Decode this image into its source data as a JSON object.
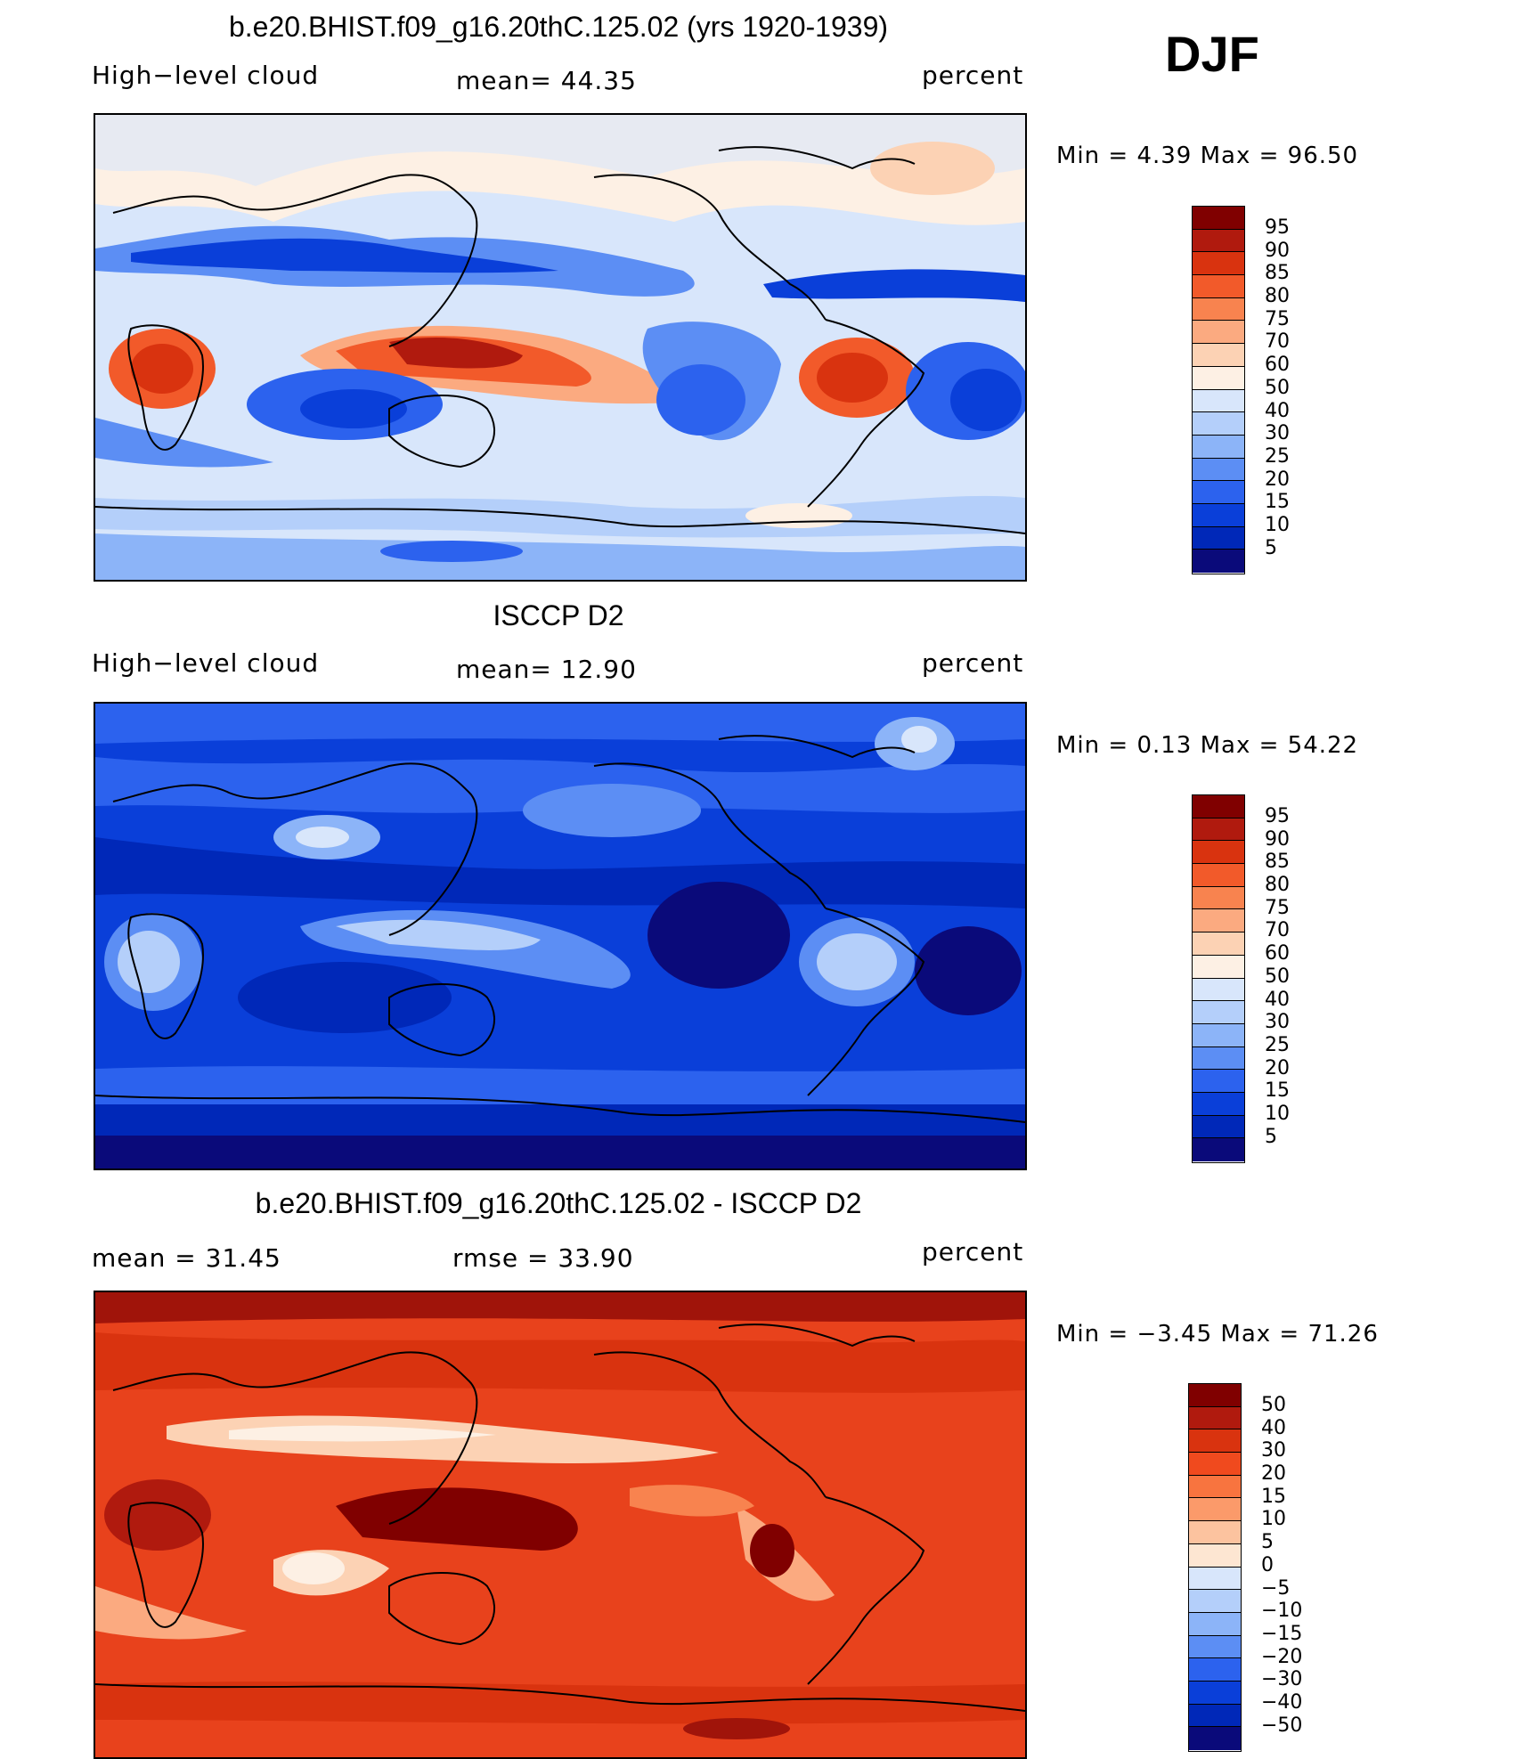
{
  "season": "DJF",
  "colors": {
    "positive_scale": [
      "#08006e",
      "#0028b8",
      "#0a3fd9",
      "#1e5af0",
      "#3c78f5",
      "#6496f7",
      "#8cb4f8",
      "#b4cffa",
      "#d8e6fb",
      "#fde8d6",
      "#fccaa8",
      "#fca67c",
      "#fb8455",
      "#f46432",
      "#e8421c",
      "#cd2810",
      "#a0140a",
      "#800000"
    ]
  },
  "panels": [
    {
      "id": "model",
      "title": "b.e20.BHIST.f09_g16.20thC.125.02 (yrs 1920-1939)",
      "left_label": "High−level cloud",
      "center_label": "mean=   44.35",
      "units": "percent",
      "minmax": "Min =    4.39 Max =   96.50",
      "colorbar_labels": [
        "95",
        "90",
        "85",
        "80",
        "75",
        "70",
        "60",
        "50",
        "40",
        "30",
        "25",
        "20",
        "15",
        "10",
        "5"
      ],
      "colorbar_colors": [
        "#800000",
        "#b01a0e",
        "#d9330f",
        "#f25a2a",
        "#f8834f",
        "#fbaa80",
        "#fcd2b4",
        "#fdf0e4",
        "#d8e6fb",
        "#b4cffa",
        "#8cb4f8",
        "#5c8ef4",
        "#2c62ee",
        "#0a3fd9",
        "#0028b8",
        "#0a0a7a"
      ]
    },
    {
      "id": "obs",
      "title": "ISCCP D2",
      "left_label": "High−level cloud",
      "center_label": "mean=   12.90",
      "units": "percent",
      "minmax": "Min =    0.13 Max =   54.22",
      "colorbar_labels": [
        "95",
        "90",
        "85",
        "80",
        "75",
        "70",
        "60",
        "50",
        "40",
        "30",
        "25",
        "20",
        "15",
        "10",
        "5"
      ],
      "colorbar_colors": [
        "#800000",
        "#b01a0e",
        "#d9330f",
        "#f25a2a",
        "#f8834f",
        "#fbaa80",
        "#fcd2b4",
        "#fdf0e4",
        "#d8e6fb",
        "#b4cffa",
        "#8cb4f8",
        "#5c8ef4",
        "#2c62ee",
        "#0a3fd9",
        "#0028b8",
        "#0a0a7a"
      ]
    },
    {
      "id": "diff",
      "title": "b.e20.BHIST.f09_g16.20thC.125.02 - ISCCP D2",
      "left_label": "mean =    31.45",
      "center_label": "rmse =    33.90",
      "units": "percent",
      "minmax": "Min =   −3.45 Max =   71.26",
      "colorbar_labels": [
        "50",
        "40",
        "30",
        "20",
        "15",
        "10",
        "5",
        "0",
        "−5",
        "−10",
        "−15",
        "−20",
        "−30",
        "−40",
        "−50"
      ],
      "colorbar_colors": [
        "#800000",
        "#b01a0e",
        "#d9330f",
        "#f04a1e",
        "#f8743f",
        "#fb9a6a",
        "#fcc39f",
        "#fde6d2",
        "#d8e6fb",
        "#b4cffa",
        "#8cb4f8",
        "#5c8ef4",
        "#2c62ee",
        "#0a3fd9",
        "#0028b8",
        "#0a0a7a"
      ]
    }
  ]
}
